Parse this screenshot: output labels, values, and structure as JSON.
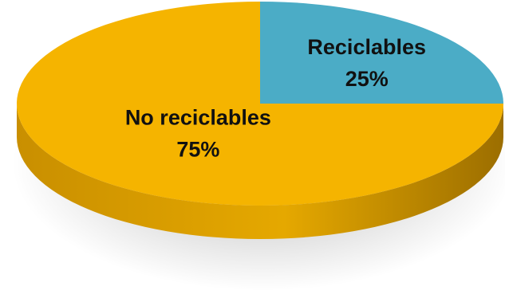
{
  "chart_data": {
    "type": "pie",
    "style": "3d",
    "slices": [
      {
        "label": "Reciclables",
        "value": 25,
        "value_label": "25%",
        "color": "#4BACC6"
      },
      {
        "label": "No reciclables",
        "value": 75,
        "value_label": "75%",
        "color": "#F5B400"
      }
    ],
    "legend": "none",
    "title": ""
  }
}
